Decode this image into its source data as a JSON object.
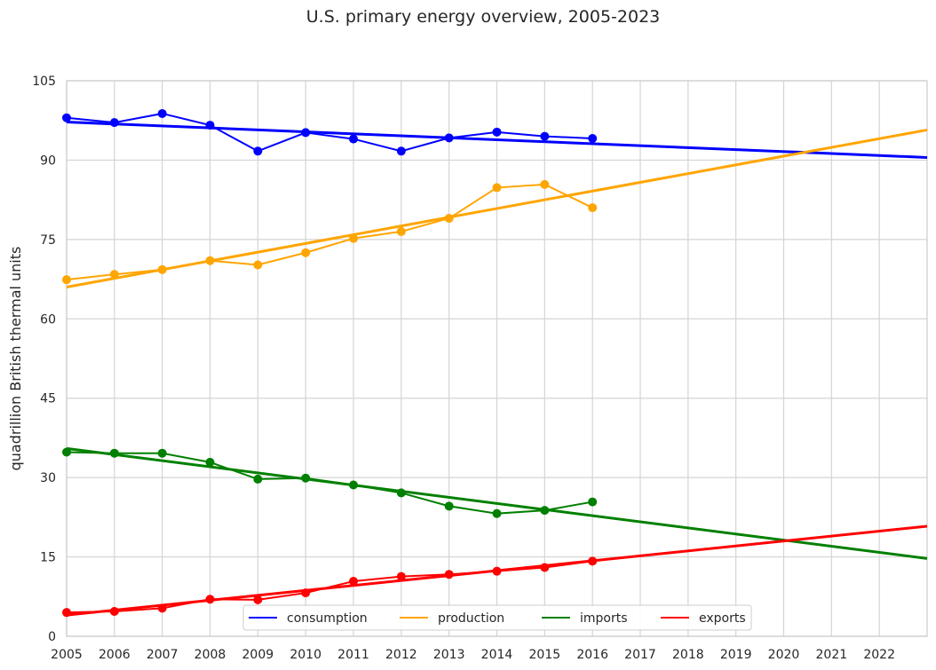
{
  "chart_data": {
    "type": "line",
    "title": "U.S. primary energy overview, 2005-2023",
    "xlabel": "",
    "ylabel": "quadrillion British thermal units",
    "xlim": [
      2005,
      2023
    ],
    "ylim": [
      0,
      105
    ],
    "x_ticks": [
      "2005",
      "2006",
      "2007",
      "2008",
      "2009",
      "2010",
      "2011",
      "2012",
      "2013",
      "2014",
      "2015",
      "2016",
      "2017",
      "2018",
      "2019",
      "2020",
      "2021",
      "2022"
    ],
    "y_ticks": [
      "0",
      "15",
      "30",
      "45",
      "60",
      "75",
      "90",
      "105"
    ],
    "grid": true,
    "legend_position": "bottom-center",
    "x": [
      2005,
      2006,
      2007,
      2008,
      2009,
      2010,
      2011,
      2012,
      2013,
      2014,
      2015,
      2016
    ],
    "series": [
      {
        "name": "consumption",
        "color": "#0000ff",
        "values": [
          98.0,
          97.1,
          98.8,
          96.6,
          91.7,
          95.2,
          94.0,
          91.7,
          94.2,
          95.3,
          94.5,
          94.1
        ],
        "trend": [
          97.2,
          90.5
        ]
      },
      {
        "name": "production",
        "color": "#ffa500",
        "values": [
          67.4,
          68.4,
          69.3,
          71.0,
          70.2,
          72.5,
          75.2,
          76.5,
          79.0,
          84.8,
          85.4,
          81.0
        ],
        "trend": [
          66.0,
          95.7
        ]
      },
      {
        "name": "imports",
        "color": "#008000",
        "values": [
          34.8,
          34.6,
          34.6,
          32.9,
          29.7,
          29.9,
          28.6,
          27.1,
          24.6,
          23.2,
          23.8,
          25.4
        ],
        "trend": [
          35.5,
          14.7
        ]
      },
      {
        "name": "exports",
        "color": "#ff0000",
        "values": [
          4.5,
          4.7,
          5.3,
          7.0,
          6.9,
          8.2,
          10.4,
          11.3,
          11.7,
          12.3,
          13.0,
          14.2
        ],
        "trend": [
          4.0,
          20.8
        ]
      }
    ]
  }
}
